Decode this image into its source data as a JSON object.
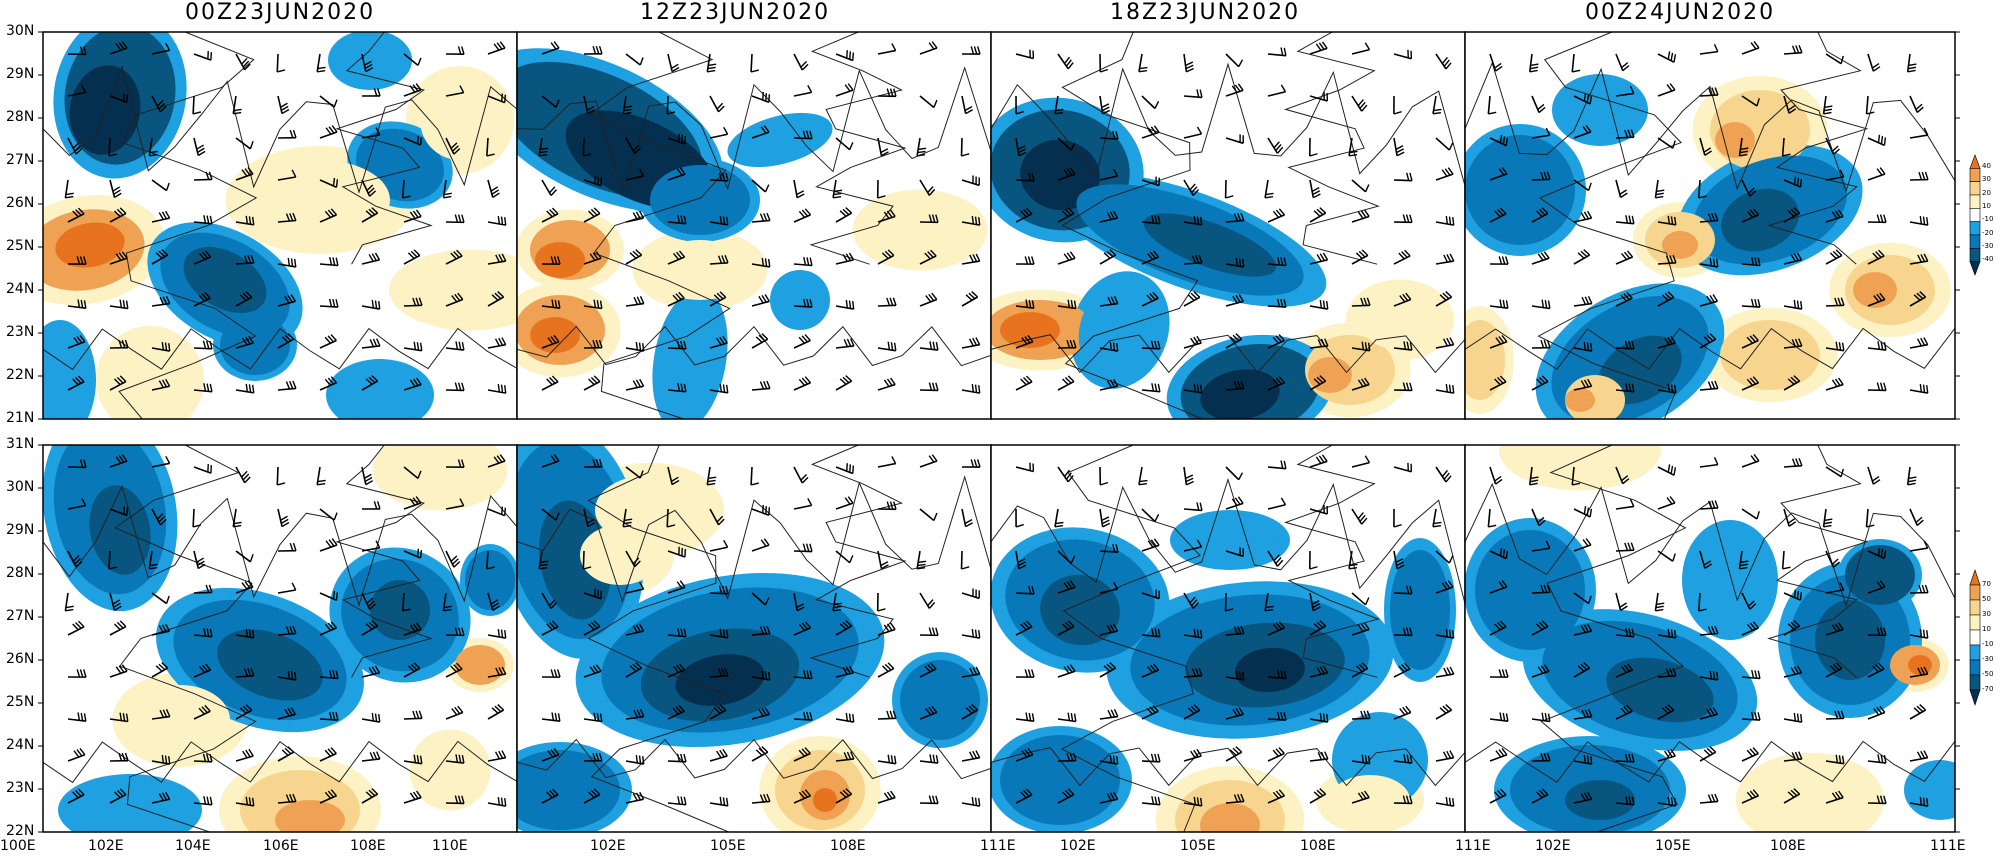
{
  "titles": [
    "00Z23JUN2020",
    "12Z23JUN2020",
    "18Z23JUN2020",
    "00Z24JUN2020"
  ],
  "top_row": {
    "lat_labels": [
      "30N",
      "29N",
      "28N",
      "27N",
      "26N",
      "25N",
      "24N",
      "23N",
      "22N",
      "21N"
    ]
  },
  "bottom_row": {
    "lat_labels": [
      "31N",
      "30N",
      "29N",
      "28N",
      "27N",
      "26N",
      "25N",
      "24N",
      "23N",
      "22N"
    ]
  },
  "lon_labels": {
    "panel1": [
      "100E",
      "102E",
      "104E",
      "106E",
      "108E",
      "110E"
    ],
    "panel2": [
      "102E",
      "105E",
      "108E"
    ],
    "panel3": [
      "111E",
      "102E",
      "105E",
      "108E"
    ],
    "panel4": [
      "111E",
      "102E",
      "105E",
      "108E",
      "111E"
    ]
  },
  "colorbar_top": [
    "40",
    "30",
    "20",
    "10",
    "-10",
    "-20",
    "-30",
    "-40"
  ],
  "colorbar_bottom": [
    "70",
    "50",
    "30",
    "10",
    "-10",
    "-30",
    "-50",
    "-70"
  ],
  "colors": {
    "pos1": "#fdf2c4",
    "pos2": "#f8d58e",
    "pos3": "#f0a254",
    "pos4": "#e8731f",
    "neg1": "#1fa0e0",
    "neg2": "#0878b8",
    "neg3": "#08557f",
    "neg4": "#052f4f",
    "border": "#000000"
  }
}
